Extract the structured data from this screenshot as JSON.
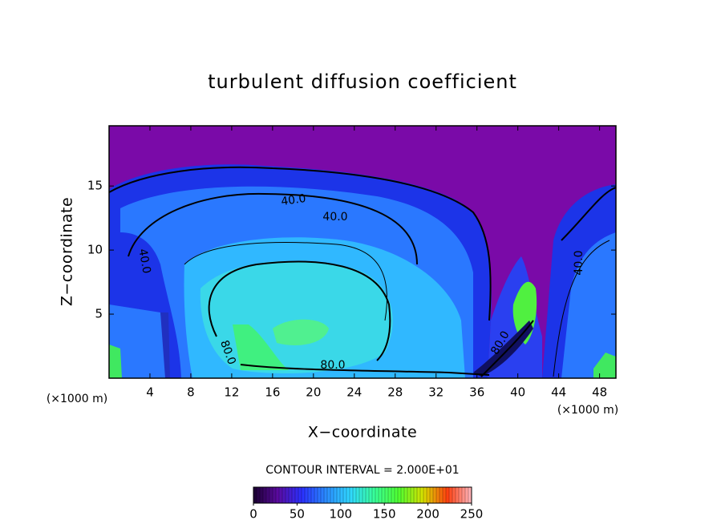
{
  "chart_data": {
    "type": "contour",
    "title": "turbulent diffusion coefficient",
    "x_label": "X−coordinate",
    "y_label": "Z−coordinate",
    "x_unit": "(×1000 m)",
    "xlim": [
      0,
      49.6
    ],
    "xticks": [
      4,
      8,
      12,
      16,
      20,
      24,
      28,
      32,
      36,
      40,
      44,
      48
    ],
    "ylim": [
      0,
      19.7
    ],
    "yticks": [
      5,
      10,
      15
    ],
    "contour_interval_label": "CONTOUR INTERVAL = 2.000E+01",
    "contour_labels": [
      {
        "value": 40,
        "label": "40.0"
      },
      {
        "value": 40,
        "label": "40.0"
      },
      {
        "value": 40,
        "label": "40.0"
      },
      {
        "value": 40,
        "label": "40.0"
      },
      {
        "value": 80,
        "label": "80.0"
      },
      {
        "value": 80,
        "label": "80.0"
      },
      {
        "value": 80,
        "label": "80.0"
      }
    ],
    "colorbar": {
      "lim": [
        0,
        250
      ],
      "ticks": [
        0,
        50,
        100,
        150,
        200,
        250
      ],
      "colors": [
        "#1a0030",
        "#5a0aa0",
        "#2a30ff",
        "#2a8cff",
        "#30d8ff",
        "#38ff98",
        "#50ff30",
        "#d8e000",
        "#ff4010",
        "#ffb8c0"
      ]
    }
  }
}
